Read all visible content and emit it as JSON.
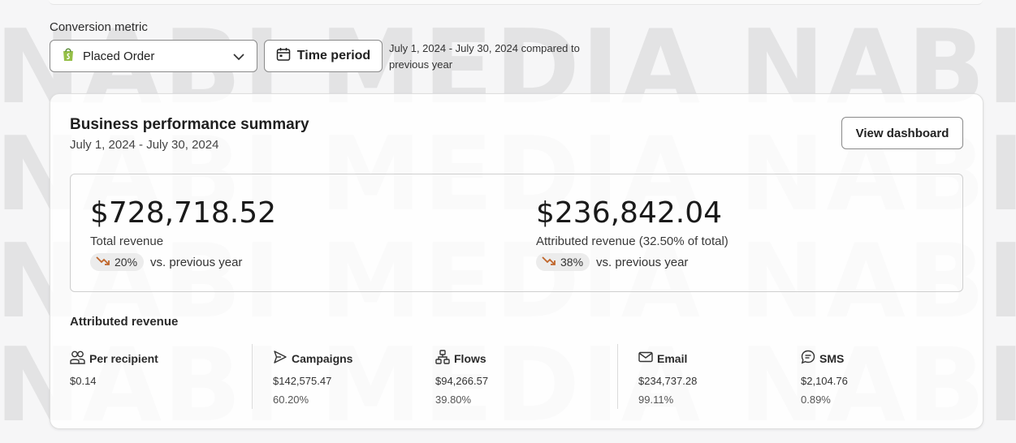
{
  "watermark": {
    "lines": [
      "NABI MEDIA NABI M",
      "NABI MEDIA NABI M",
      "NABI MEDIA NABI M",
      "NABI MEDIA NABI M"
    ]
  },
  "filters": {
    "metric_label": "Conversion metric",
    "metric_selected": "Placed Order",
    "time_period_label": "Time period",
    "period_description": "July 1, 2024 - July 30, 2024 compared to previous year"
  },
  "summary": {
    "title": "Business performance summary",
    "date_range": "July 1, 2024 - July 30, 2024",
    "view_dashboard_label": "View dashboard",
    "total": {
      "value": "$728,718.52",
      "label": "Total revenue",
      "change": "20%",
      "comparison": "vs. previous year"
    },
    "attributed": {
      "value": "$236,842.04",
      "label": "Attributed revenue (32.50% of total)",
      "change": "38%",
      "comparison": "vs. previous year"
    }
  },
  "attributed_revenue": {
    "title": "Attributed revenue",
    "per_recipient": {
      "label": "Per recipient",
      "value": "$0.14",
      "icon": "users-icon"
    },
    "campaigns": {
      "label": "Campaigns",
      "value": "$142,575.47",
      "share": "60.20%",
      "icon": "send-icon"
    },
    "flows": {
      "label": "Flows",
      "value": "$94,266.57",
      "share": "39.80%",
      "icon": "flow-icon"
    },
    "email": {
      "label": "Email",
      "value": "$234,737.28",
      "share": "99.11%",
      "icon": "mail-icon"
    },
    "sms": {
      "label": "SMS",
      "value": "$2,104.76",
      "share": "0.89%",
      "icon": "sms-icon"
    }
  },
  "colors": {
    "trend_down": "#c0662b",
    "shopify_green": "#95bf47",
    "border": "#8a8a8a"
  }
}
